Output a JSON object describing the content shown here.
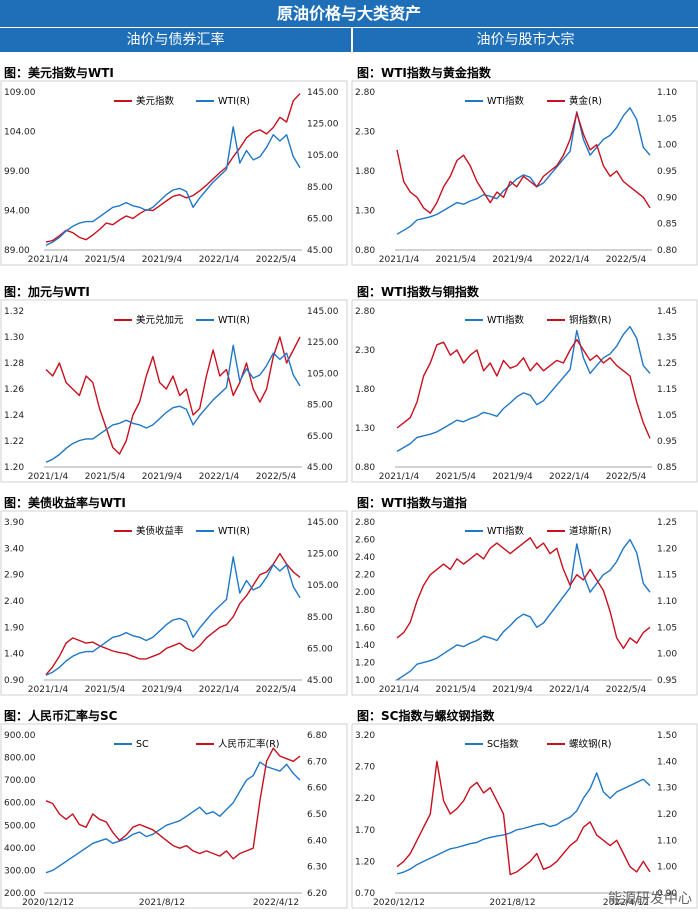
{
  "header": {
    "title": "原油价格与大类资产",
    "left_section": "油价与债券汇率",
    "right_section": "油价与股市大宗"
  },
  "watermark": "能源研发中心",
  "colors": {
    "blue": "#1f77c8",
    "red": "#c8101e",
    "banner": "#1f6fb8"
  },
  "chart_data": [
    {
      "type": "line",
      "title": "图：美元指数与WTI",
      "series": [
        {
          "name": "美元指数",
          "axis": "left",
          "color": "#c8101e",
          "values": [
            90,
            90.2,
            90.8,
            91.5,
            91.2,
            90.6,
            90.3,
            90.9,
            91.6,
            92.4,
            92.2,
            92.8,
            93.3,
            93.0,
            93.6,
            94.1,
            94.0,
            94.6,
            95.2,
            95.8,
            96.0,
            95.6,
            95.9,
            96.5,
            97.2,
            98.0,
            98.8,
            99.5,
            100.8,
            101.9,
            103.2,
            103.9,
            104.2,
            103.7,
            104.5,
            105.8,
            105.2,
            107.9,
            108.8
          ]
        },
        {
          "name": "WTI(R)",
          "axis": "right",
          "color": "#1f77c8",
          "values": [
            48,
            50,
            53,
            57,
            60,
            62,
            63,
            63,
            66,
            69,
            72,
            73,
            75,
            73,
            72,
            70,
            72,
            76,
            80,
            83,
            84,
            82,
            72,
            78,
            83,
            88,
            92,
            96,
            123,
            100,
            108,
            102,
            104,
            110,
            118,
            114,
            118,
            104,
            97
          ]
        }
      ],
      "xticks": [
        "2021/1/4",
        "2021/5/4",
        "2021/9/4",
        "2022/1/4",
        "2022/5/4"
      ],
      "yleft": {
        "min": 89,
        "max": 109,
        "ticks": [
          "89.00",
          "94.00",
          "99.00",
          "104.00",
          "109.00"
        ]
      },
      "yright": {
        "min": 45,
        "max": 145,
        "ticks": [
          "45.00",
          "65.00",
          "85.00",
          "105.00",
          "125.00",
          "145.00"
        ]
      }
    },
    {
      "type": "line",
      "title": "图：WTI指数与黄金指数",
      "series": [
        {
          "name": "WTI指数",
          "axis": "left",
          "color": "#1f77c8",
          "values": [
            1.0,
            1.05,
            1.1,
            1.18,
            1.2,
            1.22,
            1.25,
            1.3,
            1.35,
            1.4,
            1.38,
            1.42,
            1.45,
            1.5,
            1.48,
            1.45,
            1.55,
            1.62,
            1.7,
            1.75,
            1.72,
            1.6,
            1.65,
            1.75,
            1.85,
            1.95,
            2.05,
            2.55,
            2.2,
            2.0,
            2.1,
            2.2,
            2.25,
            2.35,
            2.5,
            2.6,
            2.45,
            2.1,
            2.0
          ]
        },
        {
          "name": "黄金(R)",
          "axis": "right",
          "color": "#c8101e",
          "values": [
            0.99,
            0.93,
            0.91,
            0.9,
            0.88,
            0.87,
            0.89,
            0.92,
            0.94,
            0.97,
            0.98,
            0.96,
            0.93,
            0.91,
            0.89,
            0.91,
            0.9,
            0.93,
            0.92,
            0.94,
            0.93,
            0.92,
            0.94,
            0.95,
            0.96,
            0.98,
            1.01,
            1.06,
            1.02,
            0.99,
            1.0,
            0.96,
            0.94,
            0.95,
            0.93,
            0.92,
            0.91,
            0.9,
            0.88
          ]
        }
      ],
      "xticks": [
        "2021/1/4",
        "2021/5/4",
        "2021/9/4",
        "2022/1/4",
        "2022/5/4"
      ],
      "yleft": {
        "min": 0.8,
        "max": 2.8,
        "ticks": [
          "0.80",
          "1.30",
          "1.80",
          "2.30",
          "2.80"
        ]
      },
      "yright": {
        "min": 0.8,
        "max": 1.1,
        "ticks": [
          "0.80",
          "0.85",
          "0.90",
          "0.95",
          "1.00",
          "1.05",
          "1.10"
        ]
      }
    },
    {
      "type": "line",
      "title": "图：加元与WTI",
      "series": [
        {
          "name": "美元兑加元",
          "axis": "left",
          "color": "#c8101e",
          "values": [
            1.275,
            1.27,
            1.28,
            1.265,
            1.26,
            1.255,
            1.27,
            1.265,
            1.245,
            1.23,
            1.215,
            1.21,
            1.22,
            1.24,
            1.25,
            1.27,
            1.285,
            1.265,
            1.26,
            1.27,
            1.255,
            1.26,
            1.24,
            1.245,
            1.27,
            1.29,
            1.27,
            1.275,
            1.255,
            1.265,
            1.28,
            1.26,
            1.25,
            1.26,
            1.285,
            1.3,
            1.28,
            1.29,
            1.3
          ]
        },
        {
          "name": "WTI(R)",
          "axis": "right",
          "color": "#1f77c8",
          "values": [
            48,
            50,
            53,
            57,
            60,
            62,
            63,
            63,
            66,
            69,
            72,
            73,
            75,
            73,
            72,
            70,
            72,
            76,
            80,
            83,
            84,
            82,
            72,
            78,
            83,
            88,
            92,
            96,
            123,
            100,
            108,
            102,
            104,
            110,
            118,
            114,
            118,
            104,
            97
          ]
        }
      ],
      "xticks": [
        "2021/1/4",
        "2021/5/4",
        "2021/9/4",
        "2022/1/4",
        "2022/5/4"
      ],
      "yleft": {
        "min": 1.2,
        "max": 1.32,
        "ticks": [
          "1.20",
          "1.22",
          "1.24",
          "1.26",
          "1.28",
          "1.30",
          "1.32"
        ]
      },
      "yright": {
        "min": 45,
        "max": 145,
        "ticks": [
          "45.00",
          "65.00",
          "85.00",
          "105.00",
          "125.00",
          "145.00"
        ]
      }
    },
    {
      "type": "line",
      "title": "图：WTI指数与铜指数",
      "series": [
        {
          "name": "WTI指数",
          "axis": "left",
          "color": "#1f77c8",
          "values": [
            1.0,
            1.05,
            1.1,
            1.18,
            1.2,
            1.22,
            1.25,
            1.3,
            1.35,
            1.4,
            1.38,
            1.42,
            1.45,
            1.5,
            1.48,
            1.45,
            1.55,
            1.62,
            1.7,
            1.75,
            1.72,
            1.6,
            1.65,
            1.75,
            1.85,
            1.95,
            2.05,
            2.55,
            2.2,
            2.0,
            2.1,
            2.2,
            2.25,
            2.35,
            2.5,
            2.6,
            2.45,
            2.1,
            2.0
          ]
        },
        {
          "name": "铜指数(R)",
          "axis": "right",
          "color": "#c8101e",
          "values": [
            1.0,
            1.02,
            1.04,
            1.1,
            1.2,
            1.25,
            1.32,
            1.33,
            1.28,
            1.3,
            1.25,
            1.28,
            1.3,
            1.22,
            1.25,
            1.2,
            1.26,
            1.23,
            1.24,
            1.27,
            1.22,
            1.25,
            1.22,
            1.24,
            1.26,
            1.25,
            1.3,
            1.34,
            1.3,
            1.26,
            1.28,
            1.25,
            1.27,
            1.24,
            1.22,
            1.2,
            1.1,
            1.02,
            0.96
          ]
        }
      ],
      "xticks": [
        "2021/1/4",
        "2021/5/4",
        "2021/9/4",
        "2022/1/4",
        "2022/5/4"
      ],
      "yleft": {
        "min": 0.8,
        "max": 2.8,
        "ticks": [
          "0.80",
          "1.30",
          "1.80",
          "2.30",
          "2.80"
        ]
      },
      "yright": {
        "min": 0.85,
        "max": 1.45,
        "ticks": [
          "0.85",
          "0.95",
          "1.05",
          "1.15",
          "1.25",
          "1.35",
          "1.45"
        ]
      }
    },
    {
      "type": "line",
      "title": "图：美债收益率与WTI",
      "series": [
        {
          "name": "美债收益率",
          "axis": "left",
          "color": "#c8101e",
          "values": [
            1.0,
            1.15,
            1.35,
            1.6,
            1.7,
            1.65,
            1.6,
            1.62,
            1.55,
            1.5,
            1.45,
            1.42,
            1.4,
            1.35,
            1.3,
            1.3,
            1.35,
            1.4,
            1.5,
            1.55,
            1.6,
            1.5,
            1.45,
            1.55,
            1.7,
            1.8,
            1.9,
            1.95,
            2.1,
            2.35,
            2.5,
            2.7,
            2.9,
            2.95,
            3.1,
            3.3,
            3.1,
            2.95,
            2.85
          ]
        },
        {
          "name": "WTI(R)",
          "axis": "right",
          "color": "#1f77c8",
          "values": [
            48,
            50,
            53,
            57,
            60,
            62,
            63,
            63,
            66,
            69,
            72,
            73,
            75,
            73,
            72,
            70,
            72,
            76,
            80,
            83,
            84,
            82,
            72,
            78,
            83,
            88,
            92,
            96,
            123,
            100,
            108,
            102,
            104,
            110,
            118,
            114,
            118,
            104,
            97
          ]
        }
      ],
      "xticks": [
        "2021/1/4",
        "2021/5/4",
        "2021/9/4",
        "2022/1/4",
        "2022/5/4"
      ],
      "yleft": {
        "min": 0.9,
        "max": 3.9,
        "ticks": [
          "0.90",
          "1.40",
          "1.90",
          "2.40",
          "2.90",
          "3.40",
          "3.90"
        ]
      },
      "yright": {
        "min": 45,
        "max": 145,
        "ticks": [
          "45.00",
          "65.00",
          "85.00",
          "105.00",
          "125.00",
          "145.00"
        ]
      }
    },
    {
      "type": "line",
      "title": "图：WTI指数与道指",
      "series": [
        {
          "name": "WTI指数",
          "axis": "left",
          "color": "#1f77c8",
          "values": [
            1.0,
            1.05,
            1.1,
            1.18,
            1.2,
            1.22,
            1.25,
            1.3,
            1.35,
            1.4,
            1.38,
            1.42,
            1.45,
            1.5,
            1.48,
            1.45,
            1.55,
            1.62,
            1.7,
            1.75,
            1.72,
            1.6,
            1.65,
            1.75,
            1.85,
            1.95,
            2.05,
            2.55,
            2.2,
            2.0,
            2.1,
            2.2,
            2.25,
            2.35,
            2.5,
            2.6,
            2.45,
            2.1,
            2.0
          ]
        },
        {
          "name": "道琼斯(R)",
          "axis": "right",
          "color": "#c8101e",
          "values": [
            1.03,
            1.04,
            1.06,
            1.1,
            1.13,
            1.15,
            1.16,
            1.17,
            1.16,
            1.18,
            1.17,
            1.18,
            1.19,
            1.18,
            1.2,
            1.21,
            1.2,
            1.19,
            1.2,
            1.21,
            1.22,
            1.2,
            1.21,
            1.19,
            1.2,
            1.16,
            1.13,
            1.15,
            1.14,
            1.16,
            1.14,
            1.12,
            1.08,
            1.03,
            1.01,
            1.03,
            1.02,
            1.04,
            1.05
          ]
        }
      ],
      "xticks": [
        "2021/1/4",
        "2021/5/4",
        "2021/9/4",
        "2022/1/4",
        "2022/5/4"
      ],
      "yleft": {
        "min": 1.0,
        "max": 2.8,
        "ticks": [
          "1.00",
          "1.20",
          "1.40",
          "1.60",
          "1.80",
          "2.00",
          "2.20",
          "2.40",
          "2.60",
          "2.80"
        ]
      },
      "yright": {
        "min": 0.95,
        "max": 1.25,
        "ticks": [
          "0.95",
          "1.00",
          "1.05",
          "1.10",
          "1.15",
          "1.20",
          "1.25"
        ]
      }
    },
    {
      "type": "line",
      "title": "图：人民币汇率与SC",
      "series": [
        {
          "name": "SC",
          "axis": "left",
          "color": "#1f77c8",
          "values": [
            290,
            300,
            320,
            340,
            360,
            380,
            400,
            420,
            430,
            440,
            420,
            430,
            440,
            460,
            470,
            450,
            460,
            480,
            500,
            510,
            520,
            540,
            560,
            580,
            550,
            560,
            540,
            570,
            600,
            650,
            700,
            720,
            780,
            760,
            750,
            740,
            770,
            730,
            700
          ]
        },
        {
          "name": "人民币汇率(R)",
          "axis": "right",
          "color": "#c8101e",
          "values": [
            6.55,
            6.54,
            6.5,
            6.48,
            6.5,
            6.46,
            6.45,
            6.5,
            6.48,
            6.47,
            6.43,
            6.4,
            6.42,
            6.45,
            6.46,
            6.45,
            6.44,
            6.42,
            6.4,
            6.38,
            6.37,
            6.38,
            6.36,
            6.35,
            6.36,
            6.35,
            6.34,
            6.36,
            6.33,
            6.35,
            6.36,
            6.37,
            6.55,
            6.7,
            6.75,
            6.72,
            6.71,
            6.7,
            6.72
          ]
        }
      ],
      "xticks": [
        "2020/12/12",
        "2021/8/12",
        "2022/4/12"
      ],
      "yleft": {
        "min": 200,
        "max": 900,
        "ticks": [
          "200.00",
          "300.00",
          "400.00",
          "500.00",
          "600.00",
          "700.00",
          "800.00",
          "900.00"
        ]
      },
      "yright": {
        "min": 6.2,
        "max": 6.8,
        "ticks": [
          "6.20",
          "6.30",
          "6.40",
          "6.50",
          "6.60",
          "6.70",
          "6.80"
        ]
      }
    },
    {
      "type": "line",
      "title": "图：SC指数与螺纹钢指数",
      "series": [
        {
          "name": "SC指数",
          "axis": "left",
          "color": "#1f77c8",
          "values": [
            1.0,
            1.03,
            1.08,
            1.15,
            1.2,
            1.25,
            1.3,
            1.35,
            1.4,
            1.42,
            1.45,
            1.48,
            1.5,
            1.55,
            1.58,
            1.6,
            1.62,
            1.65,
            1.7,
            1.72,
            1.75,
            1.78,
            1.8,
            1.75,
            1.78,
            1.85,
            1.9,
            2.0,
            2.2,
            2.35,
            2.6,
            2.3,
            2.2,
            2.3,
            2.35,
            2.4,
            2.45,
            2.5,
            2.4
          ]
        },
        {
          "name": "螺纹钢(R)",
          "axis": "right",
          "color": "#c8101e",
          "values": [
            1.0,
            1.02,
            1.05,
            1.1,
            1.15,
            1.2,
            1.4,
            1.25,
            1.2,
            1.22,
            1.25,
            1.3,
            1.32,
            1.28,
            1.3,
            1.25,
            1.2,
            0.97,
            0.98,
            1.0,
            1.02,
            1.05,
            0.99,
            1.0,
            1.02,
            1.05,
            1.08,
            1.1,
            1.15,
            1.17,
            1.12,
            1.1,
            1.08,
            1.1,
            1.05,
            1.0,
            0.98,
            1.02,
            0.98
          ]
        }
      ],
      "xticks": [
        "2020/12/12",
        "2021/8/12",
        "2022/4/12"
      ],
      "yleft": {
        "min": 0.7,
        "max": 3.2,
        "ticks": [
          "0.70",
          "1.20",
          "1.70",
          "2.20",
          "2.70",
          "3.20"
        ]
      },
      "yright": {
        "min": 0.9,
        "max": 1.5,
        "ticks": [
          "0.90",
          "1.00",
          "1.10",
          "1.20",
          "1.30",
          "1.40",
          "1.50"
        ]
      }
    }
  ]
}
